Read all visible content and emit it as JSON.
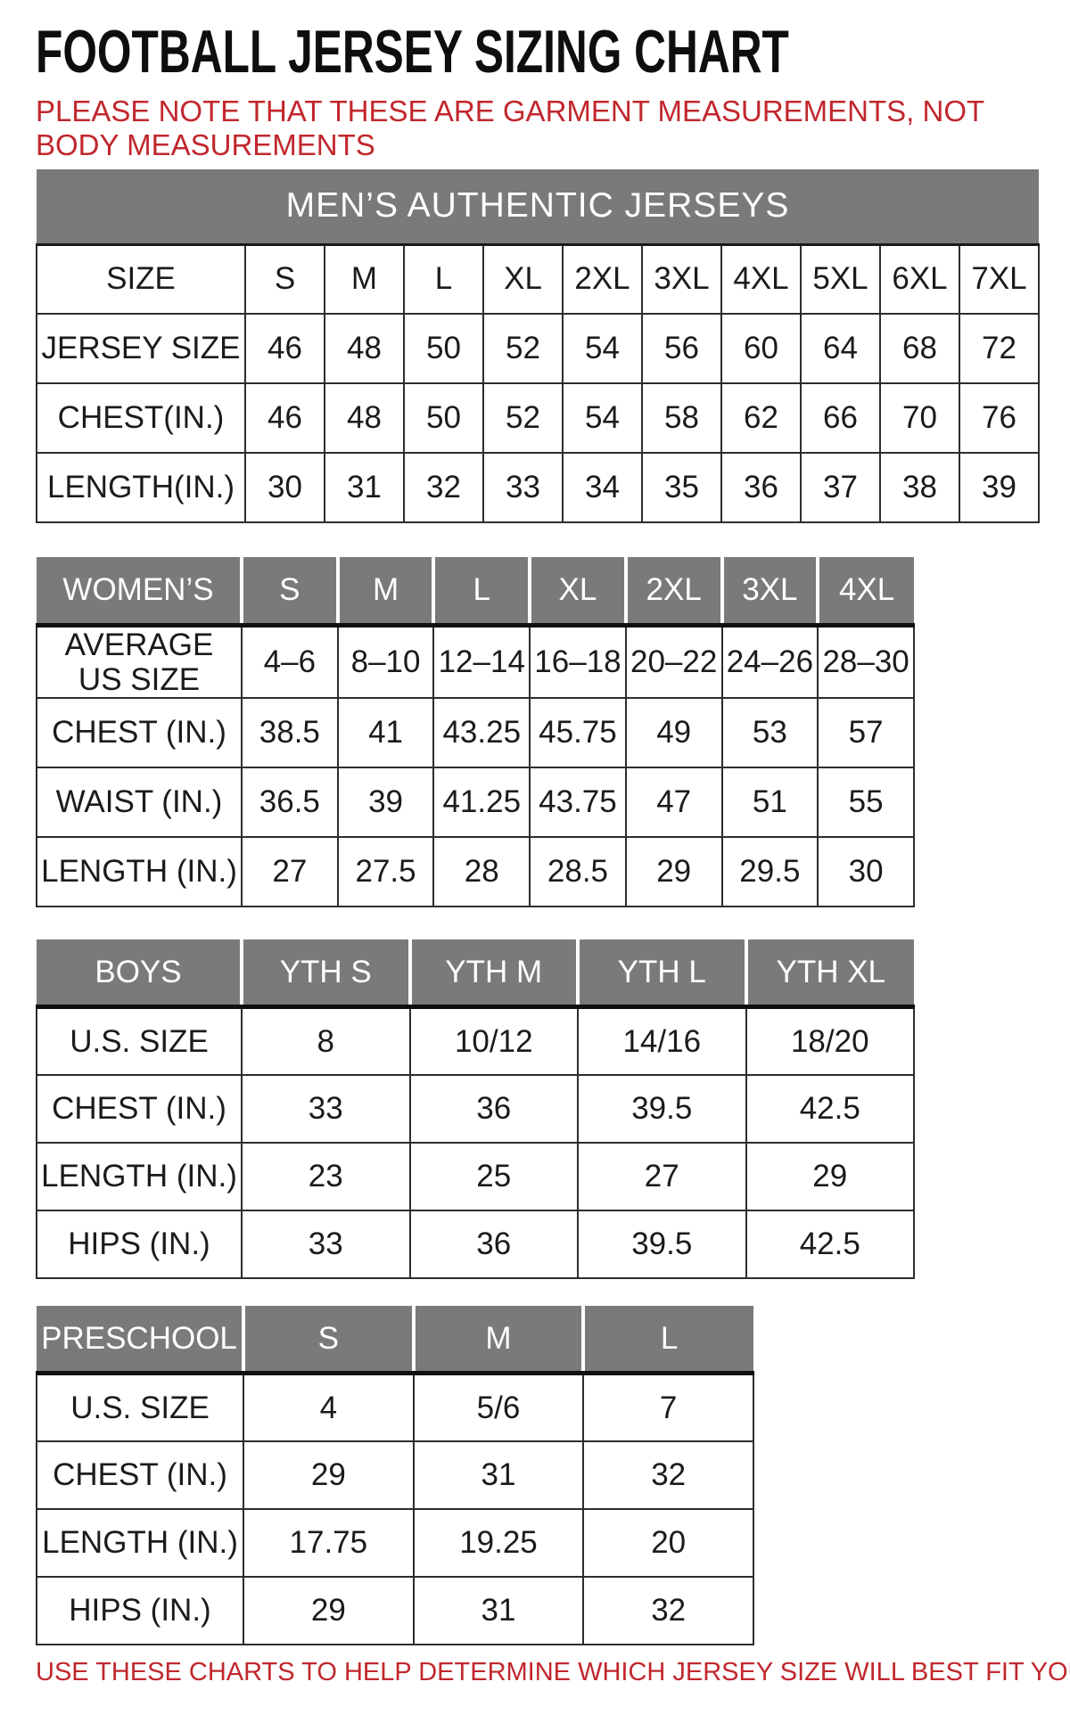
{
  "title": "FOOTBALL JERSEY SIZING CHART",
  "subtitle": "PLEASE NOTE THAT THESE ARE GARMENT MEASUREMENTS, NOT BODY MEASUREMENTS",
  "footer_note": "USE THESE CHARTS TO HELP DETERMINE WHICH JERSEY SIZE WILL BEST FIT YOU.",
  "colors": {
    "header_gray": "#7a7a7a",
    "accent_red": "#c1272d",
    "text_black": "#1b1b1b",
    "border_black": "#2d2d2d"
  },
  "tables": {
    "mens": {
      "banner": "MEN’S AUTHENTIC JERSEYS",
      "header_style": "plain",
      "header_row": [
        "SIZE",
        "S",
        "M",
        "L",
        "XL",
        "2XL",
        "3XL",
        "4XL",
        "5XL",
        "6XL",
        "7XL"
      ],
      "rows": [
        [
          "JERSEY SIZE",
          "46",
          "48",
          "50",
          "52",
          "54",
          "56",
          "60",
          "64",
          "68",
          "72"
        ],
        [
          "CHEST(IN.)",
          "46",
          "48",
          "50",
          "52",
          "54",
          "58",
          "62",
          "66",
          "70",
          "76"
        ],
        [
          "LENGTH(IN.)",
          "30",
          "31",
          "32",
          "33",
          "34",
          "35",
          "36",
          "37",
          "38",
          "39"
        ]
      ]
    },
    "womens": {
      "header_style": "gray",
      "header_row": [
        "WOMEN’S",
        "S",
        "M",
        "L",
        "XL",
        "2XL",
        "3XL",
        "4XL"
      ],
      "rows": [
        [
          "AVERAGE\nUS SIZE",
          "4–6",
          "8–10",
          "12–14",
          "16–18",
          "20–22",
          "24–26",
          "28–30"
        ],
        [
          "CHEST (IN.)",
          "38.5",
          "41",
          "43.25",
          "45.75",
          "49",
          "53",
          "57"
        ],
        [
          "WAIST (IN.)",
          "36.5",
          "39",
          "41.25",
          "43.75",
          "47",
          "51",
          "55"
        ],
        [
          "LENGTH (IN.)",
          "27",
          "27.5",
          "28",
          "28.5",
          "29",
          "29.5",
          "30"
        ]
      ]
    },
    "boys": {
      "header_style": "gray",
      "header_row": [
        "BOYS",
        "YTH S",
        "YTH M",
        "YTH L",
        "YTH XL"
      ],
      "rows": [
        [
          "U.S. SIZE",
          "8",
          "10/12",
          "14/16",
          "18/20"
        ],
        [
          "CHEST (IN.)",
          "33",
          "36",
          "39.5",
          "42.5"
        ],
        [
          "LENGTH (IN.)",
          "23",
          "25",
          "27",
          "29"
        ],
        [
          "HIPS (IN.)",
          "33",
          "36",
          "39.5",
          "42.5"
        ]
      ]
    },
    "preschool": {
      "header_style": "gray",
      "header_row": [
        "PRESCHOOL",
        "S",
        "M",
        "L"
      ],
      "rows": [
        [
          "U.S. SIZE",
          "4",
          "5/6",
          "7"
        ],
        [
          "CHEST (IN.)",
          "29",
          "31",
          "32"
        ],
        [
          "LENGTH (IN.)",
          "17.75",
          "19.25",
          "20"
        ],
        [
          "HIPS (IN.)",
          "29",
          "31",
          "32"
        ]
      ]
    }
  }
}
